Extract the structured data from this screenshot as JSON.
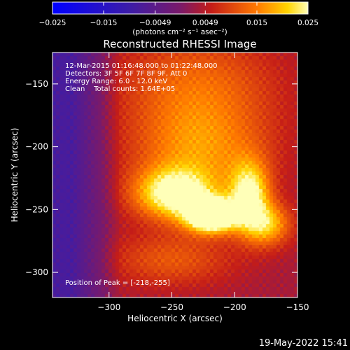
{
  "chart_data": {
    "type": "heatmap",
    "title": "Reconstructed RHESSI Image",
    "xlabel": "Heliocentric X (arcsec)",
    "ylabel": "Heliocentric Y (arcsec)",
    "xlim": [
      -345,
      -150
    ],
    "ylim": [
      -320,
      -125
    ],
    "xticks": [
      -300,
      -250,
      -200,
      -150
    ],
    "yticks": [
      -150,
      -200,
      -250,
      -300
    ],
    "colorbar": {
      "min": -0.025,
      "max": 0.025,
      "ticks": [
        "-0.025",
        "-0.015",
        "-0.0049",
        "0.0049",
        "0.015",
        "0.025"
      ],
      "tick_values": [
        -0.025,
        -0.015,
        -0.0049,
        0.0049,
        0.015,
        0.025
      ],
      "unit_label": "(photons cm⁻² s⁻¹ asec⁻²)"
    },
    "annotations": [
      "12-Mar-2015 01:16:48.000 to 01:22:48.000",
      "Detectors: 3F 5F 6F 7F 8F 9F, Att 0",
      "Energy Range: 6.0 - 12.0 keV",
      "Clean    Total counts: 1.64E+05"
    ],
    "peak_label": "Position of Peak = [-218,-255]",
    "peak": [
      -218,
      -255
    ],
    "timestamp": "19-May-2022 15:41",
    "sources": [
      {
        "x": -218,
        "y": -255,
        "sx": 14,
        "sy": 9,
        "amp": 0.035
      },
      {
        "x": -248,
        "y": -238,
        "sx": 22,
        "sy": 14,
        "amp": 0.022
      },
      {
        "x": -188,
        "y": -238,
        "sx": 11,
        "sy": 18,
        "amp": 0.02
      },
      {
        "x": -175,
        "y": -262,
        "sx": 14,
        "sy": 12,
        "amp": 0.016
      },
      {
        "x": -228,
        "y": -205,
        "sx": 38,
        "sy": 28,
        "amp": 0.012
      },
      {
        "x": -230,
        "y": -150,
        "sx": 45,
        "sy": 30,
        "amp": 0.009
      },
      {
        "x": -250,
        "y": -290,
        "sx": 35,
        "sy": 15,
        "amp": 0.008
      }
    ],
    "background": {
      "level": 0.0035,
      "left_edge_x": -320,
      "left_edge_value": -0.008
    }
  }
}
